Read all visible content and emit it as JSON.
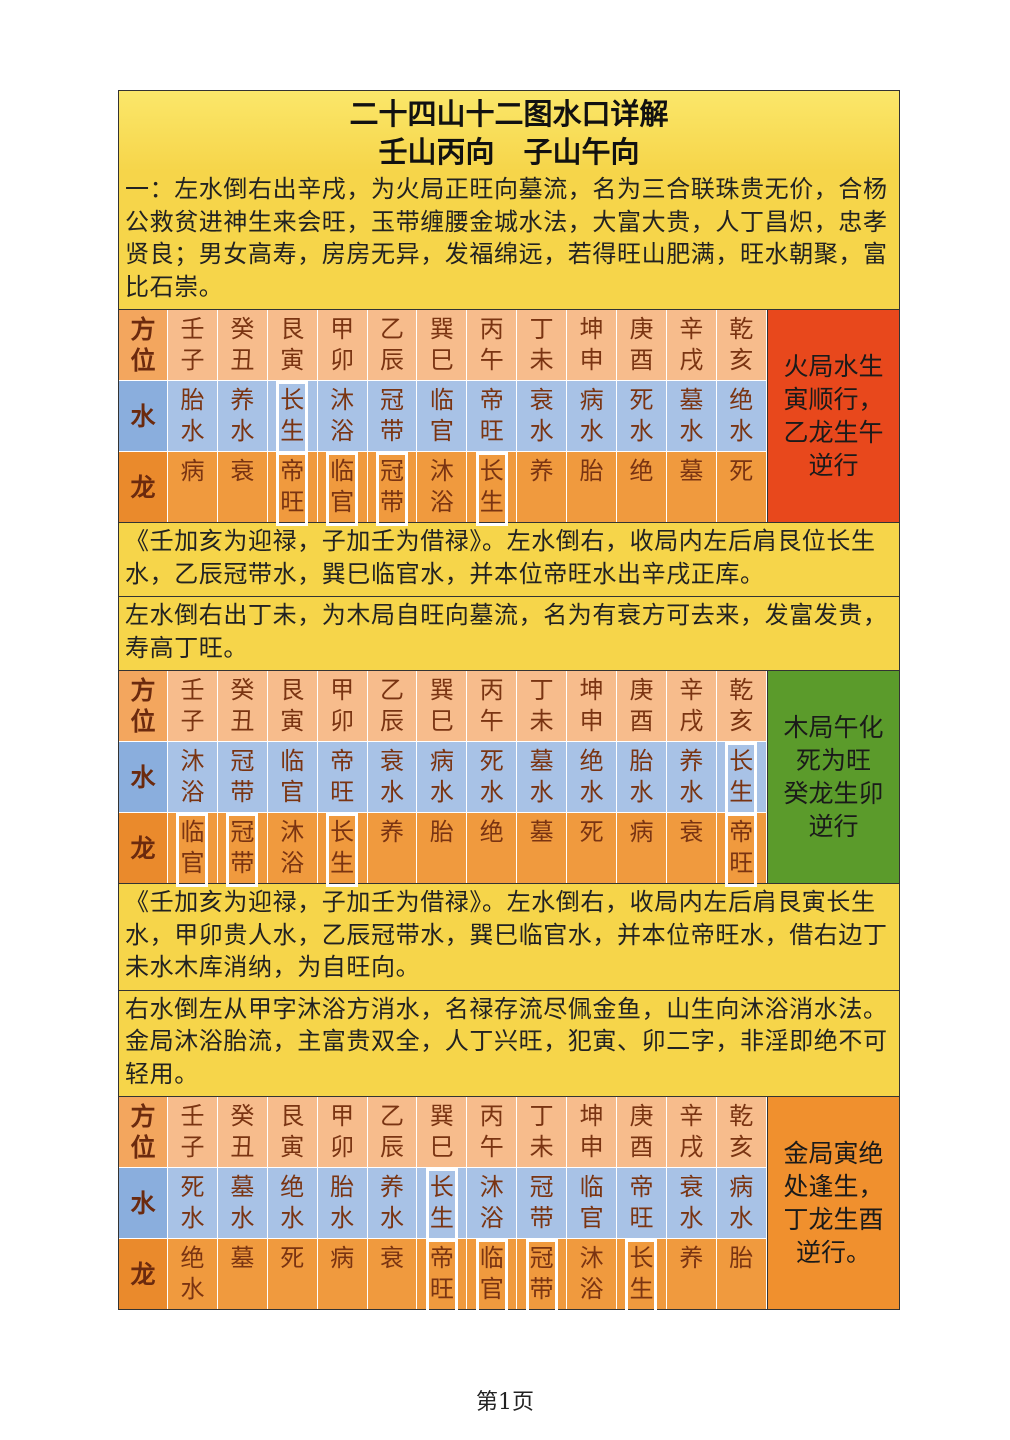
{
  "header": {
    "title": "二十四山十二图水口详解",
    "subtitle": "壬山丙向　子山午向"
  },
  "sections": [
    {
      "intro": "一：左水倒右出辛戌，为火局正旺向墓流，名为三合联珠贵无价，合杨公救贫进神生来会旺，玉带缠腰金城水法，大富大贵，人丁昌炽，忠孝贤良；男女高寿，房房无异，发福绵远，若得旺山肥满，旺水朝聚，富比石崇。",
      "table": {
        "rows": [
          {
            "label": "方位",
            "cells": [
              "壬子",
              "癸丑",
              "艮寅",
              "甲卯",
              "乙辰",
              "巽巳",
              "丙午",
              "丁未",
              "坤申",
              "庚酉",
              "辛戌",
              "乾亥"
            ],
            "boxed": []
          },
          {
            "label": "水",
            "cells": [
              "胎水",
              "养水",
              "长生",
              "沐浴",
              "冠带",
              "临官",
              "帝旺",
              "衰水",
              "病水",
              "死水",
              "墓水",
              "绝水"
            ],
            "boxed": [
              2
            ]
          },
          {
            "label": "龙",
            "cells": [
              "病",
              "衰",
              "帝旺",
              "临官",
              "冠带",
              "沐浴",
              "长生",
              "养",
              "胎",
              "绝",
              "墓",
              "死"
            ],
            "boxed": [
              2,
              3,
              4,
              6
            ]
          }
        ],
        "side": {
          "lines": [
            "火局水生",
            "寅顺行，",
            "乙龙生午",
            "逆行"
          ],
          "color": "#e8481c"
        }
      },
      "note": "《壬加亥为迎禄，子加壬为借禄》。左水倒右，收局内左后肩艮位长生水，乙辰冠带水，巽巳临官水，并本位帝旺水出辛戌正库。"
    },
    {
      "intro": "左水倒右出丁未，为木局自旺向墓流，名为有衰方可去来，发富发贵，寿高丁旺。",
      "table": {
        "rows": [
          {
            "label": "方位",
            "cells": [
              "壬子",
              "癸丑",
              "艮寅",
              "甲卯",
              "乙辰",
              "巽巳",
              "丙午",
              "丁未",
              "坤申",
              "庚酉",
              "辛戌",
              "乾亥"
            ],
            "boxed": []
          },
          {
            "label": "水",
            "cells": [
              "沐浴",
              "冠带",
              "临官",
              "帝旺",
              "衰水",
              "病水",
              "死水",
              "墓水",
              "绝水",
              "胎水",
              "养水",
              "长生"
            ],
            "boxed": [
              11
            ]
          },
          {
            "label": "龙",
            "cells": [
              "临官",
              "冠带",
              "沐浴",
              "长生",
              "养",
              "胎",
              "绝",
              "墓",
              "死",
              "病",
              "衰",
              "帝旺"
            ],
            "boxed": [
              0,
              1,
              3,
              11
            ]
          }
        ],
        "side": {
          "lines": [
            "木局午化",
            "死为旺",
            "癸龙生卯",
            "逆行"
          ],
          "color": "#5b9b2b"
        }
      },
      "note": "《壬加亥为迎禄，子加壬为借禄》。左水倒右，收局内左后肩艮寅长生水，甲卯贵人水，乙辰冠带水，巽巳临官水，并本位帝旺水，借右边丁未水木库消纳，为自旺向。"
    },
    {
      "intro": "右水倒左从甲字沐浴方消水，名禄存流尽佩金鱼，山生向沐浴消水法。金局沐浴胎流，主富贵双全，人丁兴旺，犯寅、卯二字，非淫即绝不可轻用。",
      "table": {
        "rows": [
          {
            "label": "方位",
            "cells": [
              "壬子",
              "癸丑",
              "艮寅",
              "甲卯",
              "乙辰",
              "巽巳",
              "丙午",
              "丁未",
              "坤申",
              "庚酉",
              "辛戌",
              "乾亥"
            ],
            "boxed": []
          },
          {
            "label": "水",
            "cells": [
              "死水",
              "墓水",
              "绝水",
              "胎水",
              "养水",
              "长生",
              "沐浴",
              "冠带",
              "临官",
              "帝旺",
              "衰水",
              "病水"
            ],
            "boxed": [
              5
            ]
          },
          {
            "label": "龙",
            "cells": [
              "绝水",
              "墓",
              "死",
              "病",
              "衰",
              "帝旺",
              "临官",
              "冠带",
              "沐浴",
              "长生",
              "养",
              "胎"
            ],
            "boxed": [
              5,
              6,
              7,
              9
            ]
          }
        ],
        "side": {
          "lines": [
            "金局寅绝",
            "处逢生，",
            "丁龙生酉",
            "逆行。"
          ],
          "color": "#f0902e"
        }
      }
    }
  ],
  "footer": {
    "page": "第1页"
  }
}
